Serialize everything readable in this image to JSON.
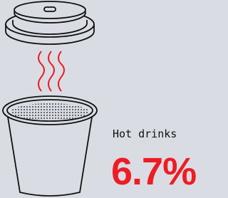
{
  "label": "Hot drinks",
  "value": "6.7%"
}
